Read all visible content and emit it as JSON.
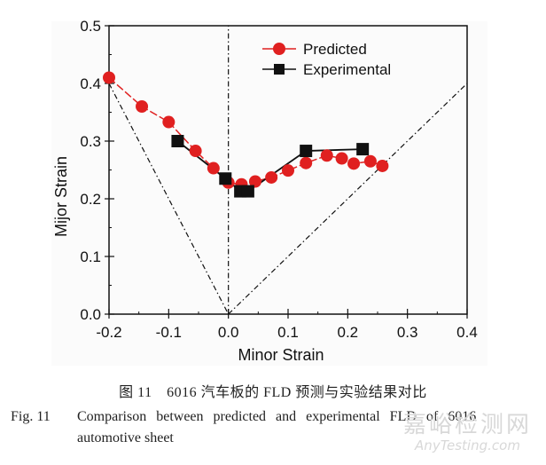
{
  "chart_data": {
    "type": "line",
    "title": "",
    "xlabel": "Minor Strain",
    "ylabel": "Mijor Strain",
    "xlim": [
      -0.2,
      0.4
    ],
    "ylim": [
      0.0,
      0.5
    ],
    "xticks": [
      "-0.2",
      "-0.1",
      "0.0",
      "0.1",
      "0.2",
      "0.3",
      "0.4"
    ],
    "xtick_values": [
      -0.2,
      -0.1,
      0.0,
      0.1,
      0.2,
      0.3,
      0.4
    ],
    "yticks": [
      "0.0",
      "0.1",
      "0.2",
      "0.3",
      "0.4",
      "0.5"
    ],
    "ytick_values": [
      0.0,
      0.1,
      0.2,
      0.3,
      0.4,
      0.5
    ],
    "grid": false,
    "legend_position": "top-right",
    "series": [
      {
        "name": "Predicted",
        "marker": "circle",
        "color": "#e02020",
        "line_style": "solid",
        "x": [
          -0.2,
          -0.145,
          -0.1,
          -0.055,
          -0.025,
          0.0,
          0.022,
          0.045,
          0.072,
          0.1,
          0.13,
          0.165,
          0.19,
          0.21,
          0.238,
          0.258
        ],
        "y": [
          0.41,
          0.36,
          0.333,
          0.283,
          0.253,
          0.228,
          0.225,
          0.23,
          0.237,
          0.249,
          0.262,
          0.275,
          0.27,
          0.261,
          0.265,
          0.257
        ]
      },
      {
        "name": "Experimental",
        "marker": "square",
        "color": "#111111",
        "line_style": "solid",
        "x": [
          -0.085,
          -0.005,
          0.02,
          0.033,
          0.13,
          0.225
        ],
        "y": [
          0.3,
          0.235,
          0.213,
          0.213,
          0.283,
          0.286
        ]
      }
    ],
    "reference_lines": [
      {
        "name": "left-boundary",
        "style": "dash-dot",
        "color": "#111111",
        "x": [
          -0.2,
          0.0
        ],
        "y": [
          0.4,
          0.0
        ]
      },
      {
        "name": "plane-strain",
        "style": "dash-dot",
        "color": "#111111",
        "x": [
          0.0,
          0.0
        ],
        "y": [
          0.0,
          0.5
        ]
      },
      {
        "name": "right-boundary",
        "style": "dash-dot",
        "color": "#111111",
        "x": [
          0.0,
          0.4
        ],
        "y": [
          0.0,
          0.4
        ]
      }
    ]
  },
  "caption": {
    "cn": "图 11　6016 汽车板的 FLD 预测与实验结果对比",
    "en_label": "Fig. 11",
    "en_line1": "Comparison between predicted and experimental FLD of 6016",
    "en_line2": "automotive sheet"
  },
  "watermark": {
    "cn": "嘉峪检测网",
    "en": "AnyTesting.com"
  }
}
